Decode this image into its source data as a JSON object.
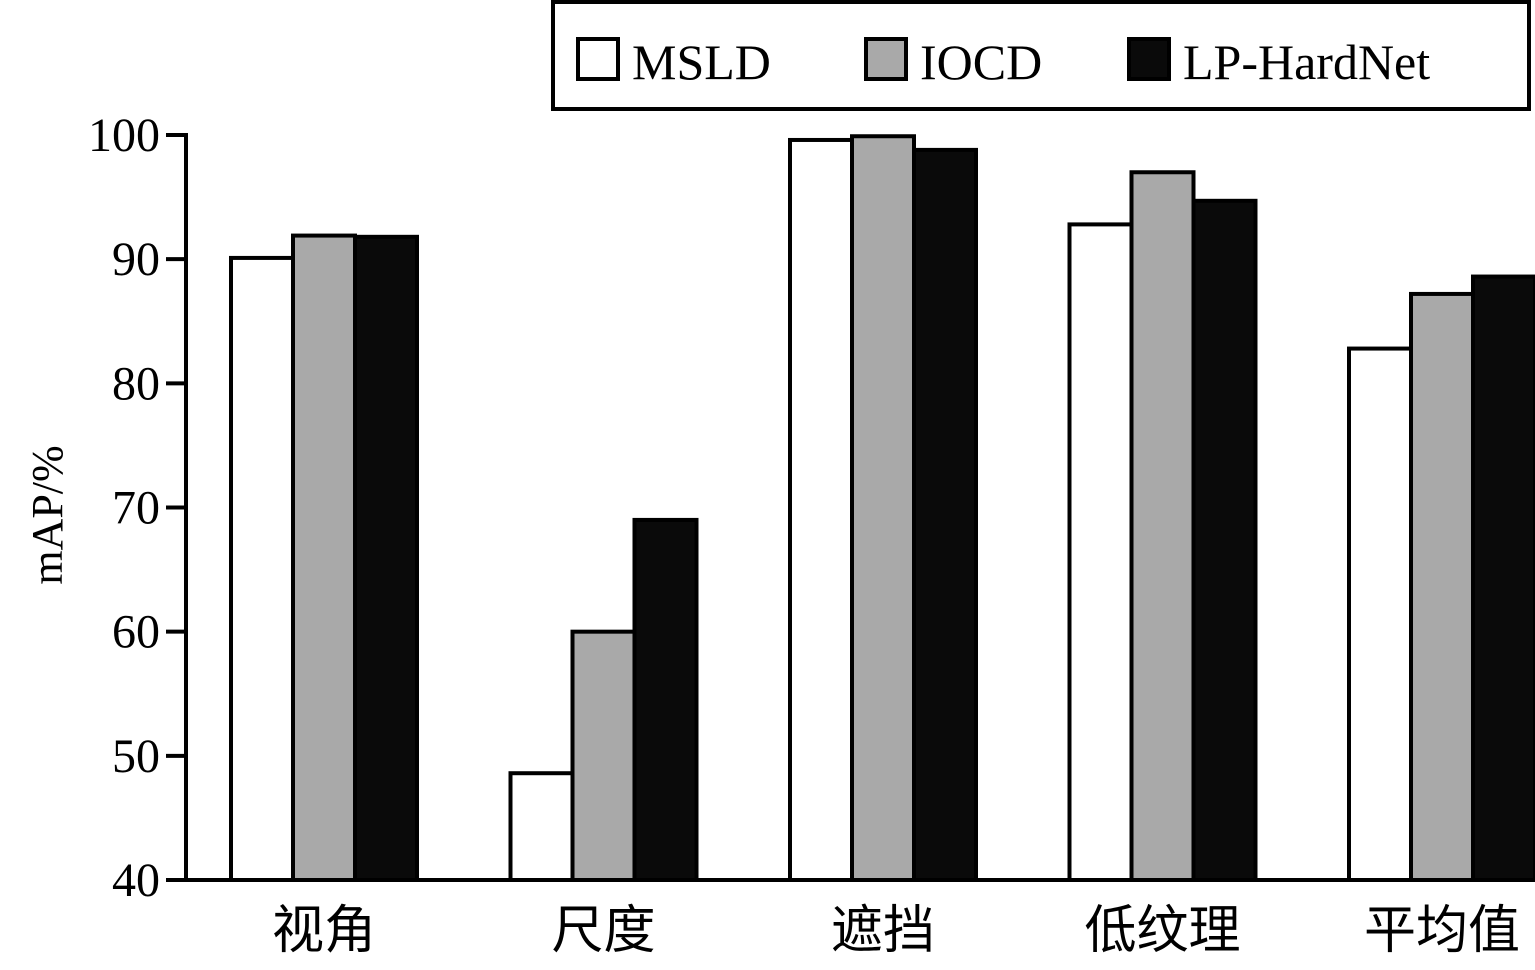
{
  "chart_data": {
    "type": "bar",
    "title": "",
    "xlabel": "",
    "ylabel": "mAP/%",
    "ylim": [
      40,
      100
    ],
    "yticks": [
      "40",
      "50",
      "60",
      "70",
      "80",
      "90",
      "100"
    ],
    "categories": [
      "视角",
      "尺度",
      "遮挡",
      "低纹理",
      "平均值"
    ],
    "series": [
      {
        "name": "MSLD",
        "color": "#ffffff",
        "values": [
          90.1,
          48.6,
          99.6,
          92.8,
          82.8
        ]
      },
      {
        "name": "IOCD",
        "color": "#a9a9a9",
        "values": [
          91.9,
          60.0,
          99.9,
          97.0,
          87.2
        ]
      },
      {
        "name": "LP-HardNet",
        "color": "#0a0a0a",
        "values": [
          91.8,
          69.0,
          98.8,
          94.7,
          88.6
        ]
      }
    ],
    "legend_position": "top-right",
    "grid": false
  }
}
